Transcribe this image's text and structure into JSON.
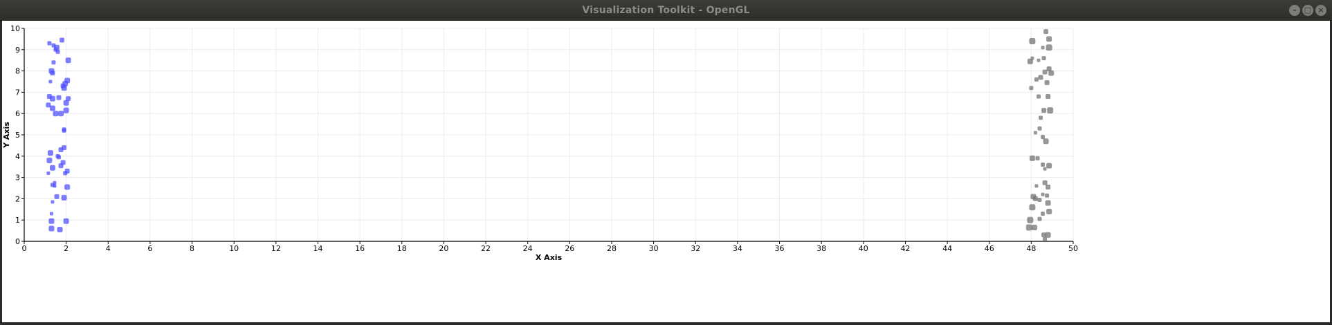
{
  "window": {
    "title": "Visualization Toolkit - OpenGL",
    "controls": {
      "minimize": "–",
      "maximize": "□",
      "close": "×"
    }
  },
  "chart_data": {
    "type": "scatter",
    "title": "",
    "xlabel": "X Axis",
    "ylabel": "Y Axis",
    "xlim": [
      0,
      50
    ],
    "ylim": [
      0,
      10
    ],
    "xticks": [
      0,
      2,
      4,
      6,
      8,
      10,
      12,
      14,
      16,
      18,
      20,
      22,
      24,
      26,
      28,
      30,
      32,
      34,
      36,
      38,
      40,
      42,
      44,
      46,
      48,
      50
    ],
    "yticks": [
      0,
      1,
      2,
      3,
      4,
      5,
      6,
      7,
      8,
      9,
      10
    ],
    "grid": true,
    "series": [
      {
        "color": "#4b4bff",
        "points": [
          [
            1.8,
            9.45,
            7
          ],
          [
            1.2,
            9.3,
            6
          ],
          [
            1.4,
            9.2,
            6
          ],
          [
            1.55,
            9.1,
            8
          ],
          [
            1.5,
            9.0,
            6
          ],
          [
            1.6,
            8.9,
            6
          ],
          [
            2.1,
            8.5,
            8
          ],
          [
            1.4,
            8.4,
            6
          ],
          [
            1.3,
            8.0,
            8
          ],
          [
            1.35,
            7.9,
            7
          ],
          [
            1.25,
            7.5,
            5
          ],
          [
            2.05,
            7.55,
            8
          ],
          [
            1.95,
            7.4,
            8
          ],
          [
            1.85,
            7.3,
            7
          ],
          [
            1.9,
            7.2,
            8
          ],
          [
            1.2,
            6.8,
            7
          ],
          [
            1.35,
            6.7,
            8
          ],
          [
            1.65,
            6.75,
            7
          ],
          [
            2.1,
            6.7,
            7
          ],
          [
            2.0,
            6.5,
            8
          ],
          [
            1.15,
            6.4,
            7
          ],
          [
            1.35,
            6.25,
            8
          ],
          [
            2.0,
            6.15,
            8
          ],
          [
            1.5,
            6.0,
            8
          ],
          [
            1.75,
            6.0,
            8
          ],
          [
            1.9,
            5.25,
            6
          ],
          [
            1.9,
            5.2,
            6
          ],
          [
            1.9,
            4.4,
            7
          ],
          [
            1.75,
            4.3,
            7
          ],
          [
            1.25,
            4.15,
            8
          ],
          [
            1.6,
            4.0,
            6
          ],
          [
            1.65,
            3.95,
            6
          ],
          [
            1.2,
            3.8,
            8
          ],
          [
            1.85,
            3.7,
            7
          ],
          [
            1.75,
            3.55,
            7
          ],
          [
            1.35,
            3.45,
            8
          ],
          [
            2.05,
            3.3,
            7
          ],
          [
            1.95,
            3.2,
            6
          ],
          [
            1.15,
            3.2,
            5
          ],
          [
            1.45,
            2.75,
            5
          ],
          [
            1.35,
            2.65,
            6
          ],
          [
            1.45,
            2.6,
            5
          ],
          [
            2.05,
            2.55,
            8
          ],
          [
            1.55,
            2.1,
            7
          ],
          [
            1.9,
            2.05,
            8
          ],
          [
            1.35,
            1.85,
            5
          ],
          [
            1.3,
            1.3,
            5
          ],
          [
            1.3,
            0.95,
            8
          ],
          [
            2.0,
            0.95,
            8
          ],
          [
            1.3,
            0.6,
            8
          ],
          [
            1.7,
            0.55,
            8
          ]
        ]
      },
      {
        "color": "#6e6e6e",
        "points": [
          [
            48.7,
            9.85,
            7
          ],
          [
            48.05,
            9.4,
            9
          ],
          [
            48.85,
            9.5,
            8
          ],
          [
            48.55,
            9.1,
            5
          ],
          [
            48.85,
            9.1,
            9
          ],
          [
            48.05,
            8.6,
            5
          ],
          [
            48.35,
            8.5,
            5
          ],
          [
            48.6,
            8.6,
            6
          ],
          [
            47.95,
            8.45,
            8
          ],
          [
            48.85,
            8.1,
            7
          ],
          [
            48.65,
            7.95,
            7
          ],
          [
            48.95,
            7.9,
            8
          ],
          [
            48.45,
            7.7,
            7
          ],
          [
            48.25,
            7.6,
            6
          ],
          [
            48.75,
            7.45,
            7
          ],
          [
            48.0,
            7.2,
            6
          ],
          [
            48.35,
            6.8,
            6
          ],
          [
            48.8,
            6.8,
            7
          ],
          [
            48.6,
            6.15,
            7
          ],
          [
            48.9,
            6.15,
            9
          ],
          [
            48.45,
            5.8,
            6
          ],
          [
            48.4,
            5.3,
            6
          ],
          [
            48.2,
            5.1,
            5
          ],
          [
            48.55,
            4.9,
            6
          ],
          [
            48.7,
            4.7,
            8
          ],
          [
            48.05,
            3.9,
            8
          ],
          [
            48.3,
            3.9,
            6
          ],
          [
            48.55,
            3.6,
            6
          ],
          [
            48.85,
            3.55,
            8
          ],
          [
            48.65,
            3.4,
            5
          ],
          [
            48.65,
            2.75,
            7
          ],
          [
            48.25,
            2.6,
            5
          ],
          [
            48.8,
            2.55,
            7
          ],
          [
            48.55,
            2.2,
            5
          ],
          [
            48.75,
            2.15,
            6
          ],
          [
            48.1,
            2.1,
            8
          ],
          [
            48.2,
            2.0,
            7
          ],
          [
            48.4,
            1.95,
            6
          ],
          [
            48.8,
            1.8,
            8
          ],
          [
            48.05,
            1.6,
            9
          ],
          [
            48.85,
            1.4,
            8
          ],
          [
            48.55,
            1.3,
            6
          ],
          [
            48.4,
            1.05,
            6
          ],
          [
            47.95,
            1.0,
            9
          ],
          [
            47.9,
            0.65,
            9
          ],
          [
            48.15,
            0.65,
            8
          ],
          [
            48.6,
            0.3,
            7
          ],
          [
            48.8,
            0.3,
            8
          ],
          [
            48.65,
            0.1,
            6
          ]
        ]
      }
    ]
  }
}
